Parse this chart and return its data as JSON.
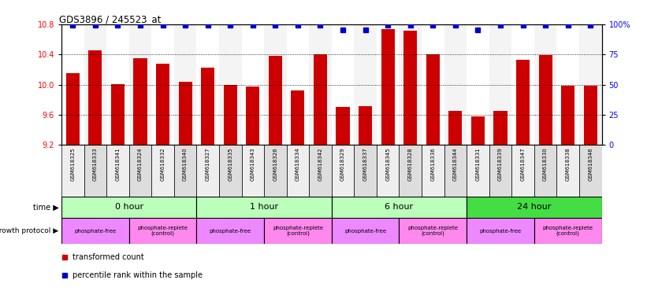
{
  "title": "GDS3896 / 245523_at",
  "samples": [
    "GSM618325",
    "GSM618333",
    "GSM618341",
    "GSM618324",
    "GSM618332",
    "GSM618340",
    "GSM618327",
    "GSM618335",
    "GSM618343",
    "GSM618326",
    "GSM618334",
    "GSM618342",
    "GSM618329",
    "GSM618337",
    "GSM618345",
    "GSM618328",
    "GSM618336",
    "GSM618344",
    "GSM618331",
    "GSM618339",
    "GSM618347",
    "GSM618330",
    "GSM618338",
    "GSM618346"
  ],
  "transformed_counts": [
    10.15,
    10.45,
    10.01,
    10.35,
    10.28,
    10.04,
    10.22,
    9.99,
    9.97,
    10.38,
    9.92,
    10.4,
    9.7,
    9.71,
    10.73,
    10.71,
    10.4,
    9.65,
    9.58,
    9.65,
    10.33,
    10.39,
    9.98,
    9.98
  ],
  "percentile_ranks": [
    99,
    99,
    99,
    99,
    99,
    99,
    99,
    99,
    99,
    99,
    99,
    99,
    95,
    95,
    99,
    99,
    99,
    99,
    95,
    99,
    99,
    99,
    99,
    99
  ],
  "bar_color": "#cc0000",
  "percentile_color": "#0000cc",
  "ylim_left": [
    9.2,
    10.8
  ],
  "ylim_right": [
    0,
    100
  ],
  "yticks_left": [
    9.2,
    9.6,
    10.0,
    10.4,
    10.8
  ],
  "yticks_right": [
    0,
    25,
    50,
    75,
    100
  ],
  "grid_lines": [
    9.6,
    10.0,
    10.4
  ],
  "time_groups": [
    {
      "label": "0 hour",
      "start": 0,
      "end": 6,
      "color": "#bbffbb"
    },
    {
      "label": "1 hour",
      "start": 6,
      "end": 12,
      "color": "#bbffbb"
    },
    {
      "label": "6 hour",
      "start": 12,
      "end": 18,
      "color": "#bbffbb"
    },
    {
      "label": "24 hour",
      "start": 18,
      "end": 24,
      "color": "#44dd44"
    }
  ],
  "prot_starts": [
    0,
    3,
    6,
    9,
    12,
    15,
    18,
    21
  ],
  "prot_ends": [
    3,
    6,
    9,
    12,
    15,
    18,
    21,
    24
  ],
  "prot_labels": [
    "phosphate-free",
    "phosphate-replete\n(control)",
    "phosphate-free",
    "phosphate-replete\n(control)",
    "phosphate-free",
    "phosphate-replete\n(control)",
    "phosphate-free",
    "phosphate-replete\n(control)"
  ],
  "prot_colors": [
    "#ee88ff",
    "#ff88ee",
    "#ee88ff",
    "#ff88ee",
    "#ee88ff",
    "#ff88ee",
    "#ee88ff",
    "#ff88ee"
  ],
  "background_color": "#ffffff",
  "col_colors": [
    "#ffffff",
    "#dddddd"
  ]
}
